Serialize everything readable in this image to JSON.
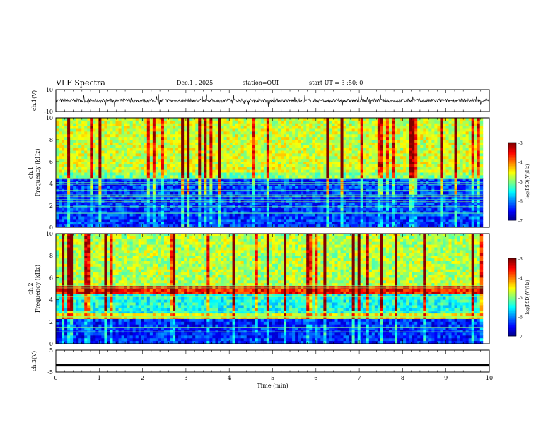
{
  "header": {
    "title": "VLF Spectra",
    "date": "Dec.1 , 2025",
    "station": "station=OUI",
    "start": "start UT = 3 :50: 0"
  },
  "colors": {
    "colormap": [
      "#00007f",
      "#0000ff",
      "#007fff",
      "#00ffff",
      "#7fff7f",
      "#ffff00",
      "#ff7f00",
      "#ff0000",
      "#7f0000"
    ],
    "trace": "#000000",
    "frame": "#000000"
  },
  "chart_data": [
    {
      "type": "line",
      "panel": "ch1-waveform",
      "ylabel": "ch.1(V)",
      "ylim": [
        -10,
        10
      ],
      "yticks": [
        "10",
        "-10"
      ],
      "xlim": [
        0,
        10
      ],
      "baseline": 0,
      "note": "noisy waveform with impulsive spikes"
    },
    {
      "type": "heatmap",
      "panel": "ch1-spectrogram",
      "ylabel": "ch.1\nFrequency (kHz)",
      "ylim": [
        0,
        10
      ],
      "yticks": [
        "0",
        "2",
        "4",
        "6",
        "8",
        "10"
      ],
      "xlim": [
        0,
        10
      ],
      "colorbar": {
        "label": "log(PSD)(V²/Hz)",
        "range": [
          -7,
          -3
        ],
        "ticks": [
          "-3",
          "-4",
          "-5",
          "-6",
          "-7"
        ]
      },
      "bands": [
        {
          "from": 0,
          "to": 4.6,
          "level": 0.18
        },
        {
          "from": 4.6,
          "to": 5.0,
          "level": 0.5
        },
        {
          "from": 5.0,
          "to": 10,
          "level": 0.58
        }
      ],
      "data_end_min": 9.85
    },
    {
      "type": "heatmap",
      "panel": "ch2-spectrogram",
      "ylabel": "ch.2\nFrequency (kHz)",
      "ylim": [
        0,
        10
      ],
      "yticks": [
        "0",
        "2",
        "4",
        "6",
        "8",
        "10"
      ],
      "xlim": [
        0,
        10
      ],
      "colorbar": {
        "label": "log(PSD)(V²/Hz)",
        "range": [
          -7,
          -3
        ],
        "ticks": [
          "-3",
          "-4",
          "-5",
          "-6",
          "-7"
        ]
      },
      "bands": [
        {
          "from": 0,
          "to": 2.2,
          "level": 0.16
        },
        {
          "from": 2.2,
          "to": 2.8,
          "level": 0.62
        },
        {
          "from": 2.8,
          "to": 4.6,
          "level": 0.4
        },
        {
          "from": 4.6,
          "to": 5.2,
          "level": 0.85
        },
        {
          "from": 5.2,
          "to": 10,
          "level": 0.55
        }
      ],
      "data_end_min": 9.85
    },
    {
      "type": "line",
      "panel": "ch3-waveform",
      "ylabel": "ch.3(V)",
      "ylim": [
        -5,
        5
      ],
      "yticks": [
        "5",
        "-5"
      ],
      "xlim": [
        0,
        10
      ],
      "constant_value": -1.8,
      "xlabel": "Time (min)",
      "xticks": [
        "0",
        "1",
        "2",
        "3",
        "4",
        "5",
        "6",
        "7",
        "8",
        "9",
        "10"
      ]
    }
  ]
}
